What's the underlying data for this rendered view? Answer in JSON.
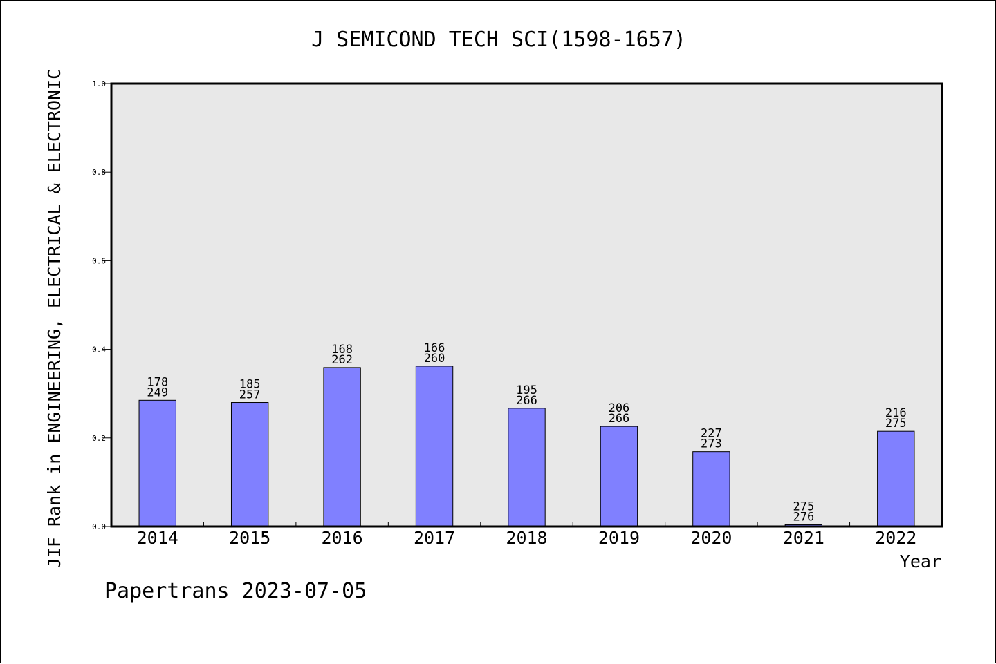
{
  "chart_data": {
    "type": "bar",
    "title": "J SEMICOND TECH SCI(1598-1657)",
    "xlabel": "Year",
    "ylabel": "JIF Rank in ENGINEERING, ELECTRICAL & ELECTRONIC",
    "ylim": [
      0,
      1.0
    ],
    "yticks": [
      "0.0",
      "0.2",
      "0.4",
      "0.6",
      "0.8",
      "1.0"
    ],
    "grid": false,
    "categories": [
      "2014",
      "2015",
      "2016",
      "2017",
      "2018",
      "2019",
      "2020",
      "2021",
      "2022"
    ],
    "values": [
      0.285,
      0.28,
      0.359,
      0.362,
      0.267,
      0.226,
      0.169,
      0.004,
      0.215
    ],
    "rank": [
      "178",
      "185",
      "168",
      "166",
      "195",
      "206",
      "227",
      "275",
      "216"
    ],
    "total": [
      "249",
      "257",
      "262",
      "260",
      "266",
      "266",
      "273",
      "276",
      "275"
    ],
    "colors": {
      "bar": "#8080ff",
      "plot_bg": "#e8e8e8",
      "axis": "#000000"
    }
  },
  "footer": {
    "watermark": "Papertrans 2023-07-05"
  }
}
